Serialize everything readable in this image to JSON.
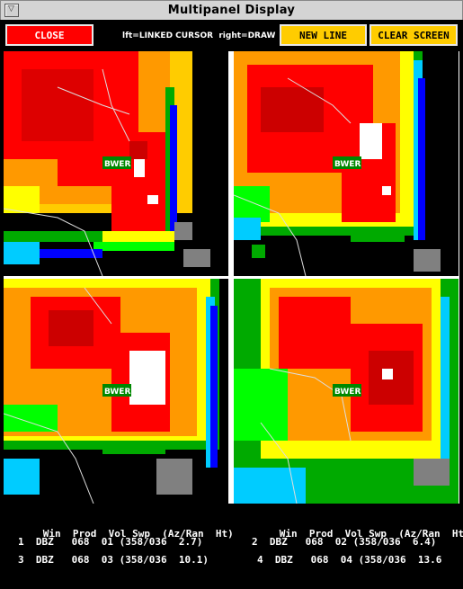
{
  "window": {
    "title": "Multipanel Display"
  },
  "toolbar": {
    "close_label": "CLOSE",
    "hint_text": "lft=LINKED CURSOR  right=DRAW",
    "new_line_label": "NEW LINE",
    "clear_screen_label": "CLEAR SCREEN"
  },
  "panels": [
    {
      "id": 1,
      "label": "BWER"
    },
    {
      "id": 2,
      "label": "BWER"
    },
    {
      "id": 3,
      "label": "BWER"
    },
    {
      "id": 4,
      "label": "BWER"
    }
  ],
  "info": {
    "headers": [
      "Win",
      "Prod",
      "Vol",
      "Swp",
      "(Az/Ran",
      "Ht)"
    ],
    "rows": [
      {
        "win": "1",
        "prod": "DBZ",
        "vol": "068",
        "swp": "01",
        "az_ran": "(358/036",
        "ht": "2.7)"
      },
      {
        "win": "2",
        "prod": "DBZ",
        "vol": "068",
        "swp": "02",
        "az_ran": "(358/036",
        "ht": "6.4)"
      },
      {
        "win": "3",
        "prod": "DBZ",
        "vol": "068",
        "swp": "03",
        "az_ran": "(358/036",
        "ht": "10.1)"
      },
      {
        "win": "4",
        "prod": "DBZ",
        "vol": "068",
        "swp": "04",
        "az_ran": "(358/036",
        "ht": "13.6"
      }
    ]
  },
  "colors": {
    "close_button": "#ff0000",
    "action_buttons": "#ffcc00",
    "reflectivity_scale": [
      "#0000ff",
      "#00ccff",
      "#00aa00",
      "#00ff00",
      "#ffff00",
      "#ffcc00",
      "#ff9900",
      "#ff0000",
      "#cc0000",
      "#ffffff"
    ]
  }
}
